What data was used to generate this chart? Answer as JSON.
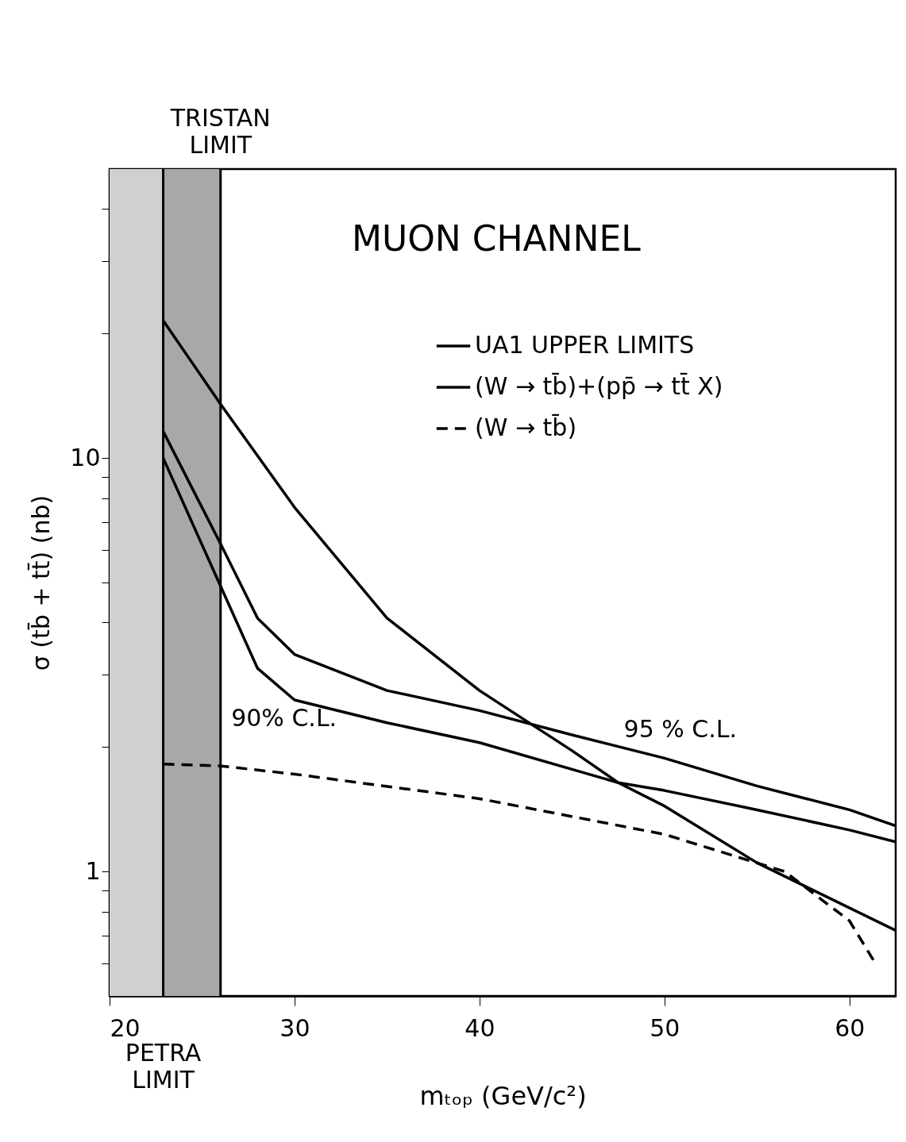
{
  "chart_data": {
    "type": "line",
    "title": "MUON CHANNEL",
    "xlabel": "mₜₒₚ (GeV/c²)",
    "ylabel": "σ (tb̄ + tt̄) (nb)",
    "log": "y",
    "xlim": [
      20,
      62.5
    ],
    "ylim": [
      0.5,
      50
    ],
    "xticks": [
      20,
      30,
      40,
      50,
      60
    ],
    "yticks": [
      {
        "value": 0.6,
        "label": null
      },
      {
        "value": 0.7,
        "label": null
      },
      {
        "value": 0.8,
        "label": null
      },
      {
        "value": 0.9,
        "label": null
      },
      1,
      {
        "value": 2,
        "label": null
      },
      {
        "value": 3,
        "label": null
      },
      {
        "value": 4,
        "label": null
      },
      {
        "value": 5,
        "label": null
      },
      {
        "value": 6,
        "label": null
      },
      {
        "value": 7,
        "label": null
      },
      {
        "value": 8,
        "label": null
      },
      {
        "value": 9,
        "label": null
      },
      10,
      {
        "value": 20,
        "label": null
      },
      {
        "value": 30,
        "label": null
      },
      {
        "value": 40,
        "label": null
      }
    ],
    "grid": false,
    "legend": "top right",
    "marker": "none",
    "series": [
      {
        "name": "UA1 UPPER LIMITS",
        "color": "#000000",
        "line_style": "solid",
        "x": [
          22.9,
          26,
          28,
          30,
          35,
          40,
          45,
          50,
          55,
          60,
          62.5
        ],
        "values": [
          11.6,
          6.2,
          4.1,
          3.35,
          2.74,
          2.45,
          2.14,
          1.88,
          1.61,
          1.41,
          1.29
        ]
      },
      {
        "color": "#000000",
        "line_style": "solid",
        "x": [
          22.9,
          26,
          28,
          30,
          35,
          40,
          47.5,
          50,
          55,
          60,
          62.5
        ],
        "values": [
          10,
          4.9,
          3.1,
          2.6,
          2.29,
          2.05,
          1.64,
          1.57,
          1.41,
          1.26,
          1.18
        ]
      },
      {
        "name": "(W → tb̄)+(pp̄ → tt̄ X)",
        "color": "#000000",
        "line_style": "solid",
        "x": [
          22.9,
          26,
          30,
          35,
          40,
          45,
          47.5,
          50,
          55,
          62.5
        ],
        "values": [
          21.5,
          13.5,
          7.6,
          4.1,
          2.74,
          1.96,
          1.64,
          1.44,
          1.05,
          0.72
        ]
      },
      {
        "name": "(W → tb̄)",
        "color": "#000000",
        "line_style": "dashed",
        "x": [
          22.9,
          26,
          30,
          40,
          50,
          56.5,
          60,
          61.3
        ],
        "values": [
          1.82,
          1.8,
          1.72,
          1.5,
          1.23,
          1.0,
          0.76,
          0.61
        ]
      }
    ],
    "bands": [
      {
        "axis": "x",
        "from": 20,
        "to": 22.9,
        "color": "#d0d0d0"
      },
      {
        "axis": "x",
        "from": 22.9,
        "to": 26,
        "color": "#a8a8a8"
      }
    ],
    "ref_lines": [
      {
        "axis": "x",
        "value": 26,
        "label": "TRISTAN LIMIT"
      },
      {
        "axis": "x",
        "value": 22.9,
        "label": "PETRA LIMIT"
      }
    ],
    "annotations": [
      {
        "text": "90% C.L.",
        "x": 29,
        "y": 2.85
      },
      {
        "text": "95 % C.L.",
        "x": 50,
        "y": 1.88
      }
    ]
  }
}
